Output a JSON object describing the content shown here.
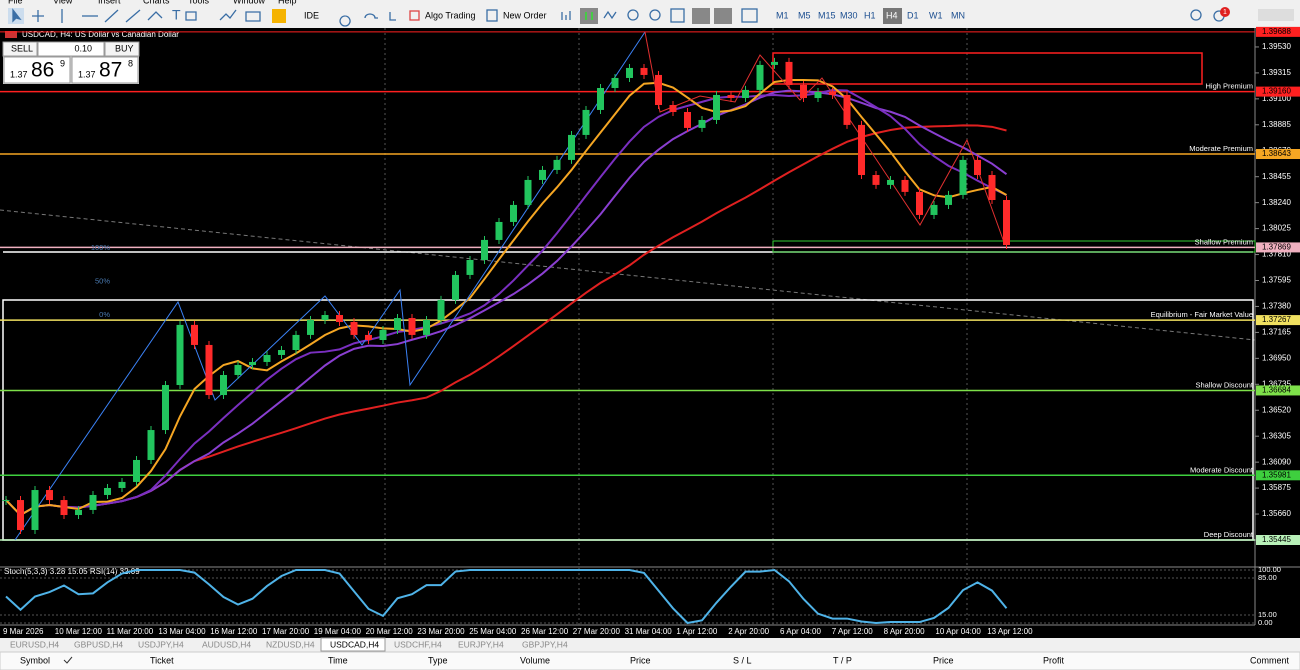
{
  "menu": [
    "File",
    "View",
    "Insert",
    "Charts",
    "Tools",
    "Window",
    "Help"
  ],
  "toolbar": {
    "ide": "IDE",
    "algo_trading": "Algo Trading",
    "new_order": "New Order",
    "timeframes": [
      "M1",
      "M5",
      "M15",
      "M30",
      "H1",
      "H4",
      "D1",
      "W1",
      "MN"
    ]
  },
  "notifications": "1",
  "trade_panel": {
    "sell": "SELL",
    "volume": "0.10",
    "buy": "BUY",
    "bid": {
      "big": "1.37",
      "main": "86",
      "small": "9"
    },
    "ask": {
      "big": "1.37",
      "main": "87",
      "small": "8"
    }
  },
  "chart_data": {
    "type": "candlestick",
    "title": "USDCAD, H4:  US Dollar vs Canadian Dollar",
    "values": [
      1.35776,
      1.35528,
      1.35859,
      1.35776,
      1.35652,
      1.35694,
      1.35818,
      1.35876,
      1.35926,
      1.36108,
      1.36356,
      1.36729,
      1.37227,
      1.37061,
      1.36646,
      1.36812,
      1.36895,
      1.3692,
      1.36978,
      1.37019,
      1.37144,
      1.37268,
      1.37309,
      1.37251,
      1.37144,
      1.37102,
      1.37185,
      1.37284,
      1.37144,
      1.37268,
      1.37434,
      1.37641,
      1.37765,
      1.37931,
      1.3808,
      1.38221,
      1.38428,
      1.38511,
      1.38594,
      1.38801,
      1.39008,
      1.3919,
      1.39273,
      1.39356,
      1.39298,
      1.39049,
      1.38991,
      1.38859,
      1.38925,
      1.39132,
      1.39107,
      1.39174,
      1.39381,
      1.39406,
      1.39215,
      1.39107,
      1.39157,
      1.39132,
      1.38884,
      1.38469,
      1.38387,
      1.38428,
      1.38329,
      1.38138,
      1.38221,
      1.38304,
      1.38594,
      1.38469,
      1.38262,
      1.37889
    ],
    "up_color": "#22c55e",
    "down_color": "#ff2a2a",
    "ylim": [
      1.35213,
      1.39687
    ],
    "yticks": [
      {
        "value": 1.3953,
        "label": "1.39530"
      },
      {
        "value": 1.39315,
        "label": "1.39315"
      },
      {
        "value": 1.391,
        "label": "1.39100"
      },
      {
        "value": 1.38885,
        "label": "1.38885"
      },
      {
        "value": 1.3867,
        "label": "1.38670"
      },
      {
        "value": 1.38455,
        "label": "1.38455"
      },
      {
        "value": 1.3824,
        "label": "1.38240"
      },
      {
        "value": 1.38025,
        "label": "1.38025"
      },
      {
        "value": 1.3781,
        "label": "1.37810"
      },
      {
        "value": 1.37595,
        "label": "1.37595"
      },
      {
        "value": 1.3738,
        "label": "1.37380"
      },
      {
        "value": 1.37165,
        "label": "1.37165"
      },
      {
        "value": 1.3695,
        "label": "1.36950"
      },
      {
        "value": 1.36735,
        "label": "1.36735"
      },
      {
        "value": 1.3652,
        "label": "1.36520"
      },
      {
        "value": 1.36305,
        "label": "1.36305"
      },
      {
        "value": 1.3609,
        "label": "1.36090"
      },
      {
        "value": 1.35875,
        "label": "1.35875"
      },
      {
        "value": 1.3566,
        "label": "1.35660"
      },
      {
        "value": 1.35445,
        "label": "1.35445"
      }
    ],
    "top_price": {
      "value": 1.39688,
      "label": "1.39688"
    },
    "levels": [
      {
        "name": "High Premium",
        "price": {
          "value": 1.3916,
          "label": "1.39160"
        },
        "color": "#ff2020"
      },
      {
        "name": "Moderate Premium",
        "price": {
          "value": 1.38643,
          "label": "1.38643"
        },
        "color": "#f5a623"
      },
      {
        "name": "Shallow Premium",
        "price": {
          "value": 1.37869,
          "label": "1.37869"
        },
        "color": "#f0b0c0"
      },
      {
        "name": "Equilibrium - Fair Market Value",
        "price": {
          "value": 1.37267,
          "label": "1.37267"
        },
        "color": "#f0e060"
      },
      {
        "name": "Shallow Discount",
        "price": {
          "value": 1.36684,
          "label": "1.36684"
        },
        "color": "#7ee04a"
      },
      {
        "name": "Moderate Discount",
        "price": {
          "value": 1.35981,
          "label": "1.35981"
        },
        "color": "#3ecf3e"
      },
      {
        "name": "Deep Discount",
        "price": {
          "value": 1.35445,
          "label": "1.35445"
        },
        "color": "#b8f0b8"
      }
    ],
    "fib": [
      {
        "value": 100,
        "label": "100%"
      },
      {
        "value": 50,
        "label": "50%"
      },
      {
        "value": 0,
        "label": "0%"
      }
    ],
    "time_labels": [
      "9 Mar 2026",
      "10 Mar 12:00",
      "11 Mar 20:00",
      "13 Mar 04:00",
      "16 Mar 12:00",
      "17 Mar 20:00",
      "19 Mar 04:00",
      "20 Mar 12:00",
      "23 Mar 20:00",
      "25 Mar 04:00",
      "26 Mar 12:00",
      "27 Mar 20:00",
      "31 Mar 04:00",
      "1 Apr 12:00",
      "2 Apr 20:00",
      "6 Apr 04:00",
      "7 Apr 12:00",
      "8 Apr 20:00",
      "10 Apr 04:00",
      "13 Apr 12:00"
    ]
  },
  "indicator": {
    "title": "Stoch(5,3,3) 3.28 15.05 RSI(14) 32.09",
    "color": "#4fb3e8",
    "ylim": [
      0,
      100
    ],
    "yticks": [
      {
        "value": 100,
        "label": "100.00"
      },
      {
        "value": 85,
        "label": "85.00"
      },
      {
        "value": 15,
        "label": "15.00"
      },
      {
        "value": 0,
        "label": "0.00"
      }
    ]
  },
  "symbol_tabs": [
    "EURUSD,H4",
    "GBPUSD,H4",
    "USDJPY,H4",
    "AUDUSD,H4",
    "NZDUSD,H4",
    "USDCAD,H4",
    "USDCHF,H4",
    "EURJPY,H4",
    "GBPJPY,H4"
  ],
  "table_header": [
    "Symbol",
    "Ticket",
    "Time",
    "Type",
    "Volume",
    "Price",
    "S / L",
    "T / P",
    "Price",
    "Profit",
    "Comment"
  ]
}
